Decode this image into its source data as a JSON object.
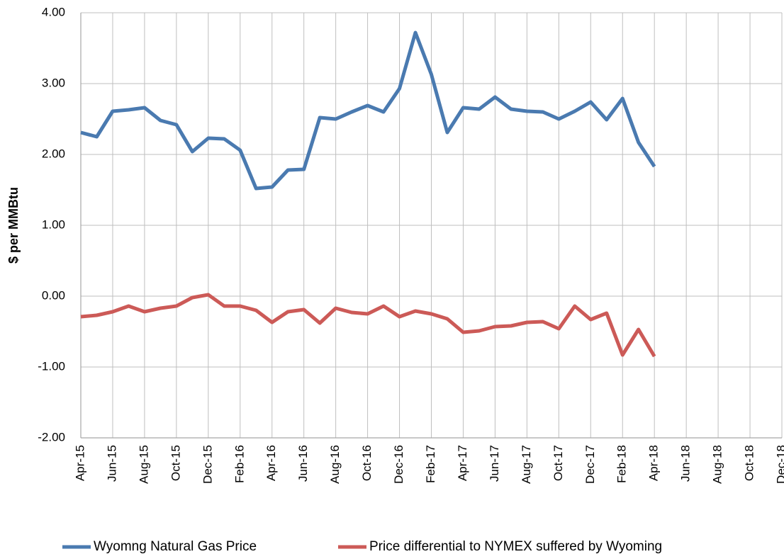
{
  "chart_data": {
    "type": "line",
    "y_label": "$ per MMBtu",
    "categories": [
      "Apr-15",
      null,
      "Jun-15",
      null,
      "Aug-15",
      null,
      "Oct-15",
      null,
      "Dec-15",
      null,
      "Feb-16",
      null,
      "Apr-16",
      null,
      "Jun-16",
      null,
      "Aug-16",
      null,
      "Oct-16",
      null,
      "Dec-16",
      null,
      "Feb-17",
      null,
      "Apr-17",
      null,
      "Jun-17",
      null,
      "Aug-17",
      null,
      "Oct-17",
      null,
      "Dec-17",
      null,
      "Feb-18",
      null,
      "Apr-18",
      null,
      "Jun-18",
      null,
      "Aug-18",
      null,
      "Oct-18",
      null,
      "Dec-18"
    ],
    "series": [
      {
        "name": "Wyomng Natural Gas Price",
        "color": "#4a7ab0",
        "values": [
          2.31,
          2.25,
          2.61,
          2.63,
          2.66,
          2.48,
          2.42,
          2.04,
          2.23,
          2.22,
          2.06,
          1.52,
          1.54,
          1.78,
          1.79,
          2.52,
          2.5,
          2.6,
          2.69,
          2.6,
          2.93,
          3.72,
          3.13,
          2.31,
          2.66,
          2.64,
          2.81,
          2.64,
          2.61,
          2.6,
          2.5,
          2.61,
          2.74,
          2.49,
          2.79,
          2.17,
          1.83,
          null,
          null,
          null,
          null,
          null,
          null,
          null,
          null
        ]
      },
      {
        "name": "Price differential to NYMEX suffered by Wyoming",
        "color": "#cc5a57",
        "values": [
          -0.29,
          -0.27,
          -0.22,
          -0.14,
          -0.22,
          -0.17,
          -0.14,
          -0.02,
          0.02,
          -0.14,
          -0.14,
          -0.2,
          -0.37,
          -0.22,
          -0.19,
          -0.38,
          -0.17,
          -0.23,
          -0.25,
          -0.14,
          -0.29,
          -0.21,
          -0.25,
          -0.32,
          -0.51,
          -0.49,
          -0.43,
          -0.42,
          -0.37,
          -0.36,
          -0.46,
          -0.14,
          -0.33,
          -0.24,
          -0.83,
          -0.47,
          -0.85,
          null,
          null,
          null,
          null,
          null,
          null,
          null,
          null
        ]
      }
    ],
    "ylim": [
      -2,
      4
    ],
    "yticks": [
      {
        "value": -2,
        "label": "-2.00"
      },
      {
        "value": -1,
        "label": "-1.00"
      },
      {
        "value": 0,
        "label": "0.00"
      },
      {
        "value": 1,
        "label": "1.00"
      },
      {
        "value": 2,
        "label": "2.00"
      },
      {
        "value": 3,
        "label": "3.00"
      },
      {
        "value": 4,
        "label": "4.00"
      }
    ],
    "grid": true,
    "legend": "bottom"
  }
}
